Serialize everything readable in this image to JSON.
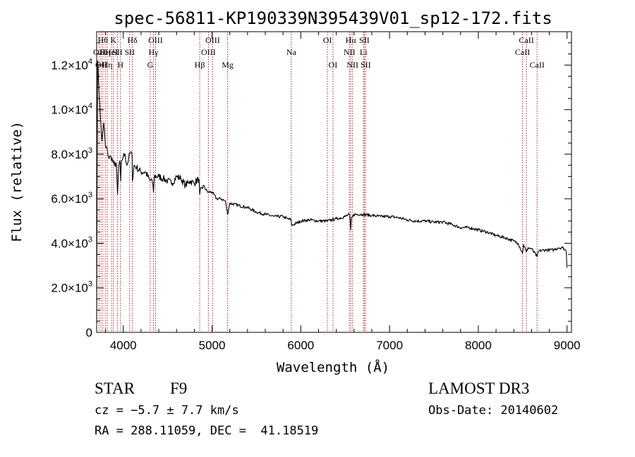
{
  "chart_data": {
    "type": "line",
    "title": "spec-56811-KP190339N395439V01_sp12-172.fits",
    "xlabel": "Wavelength (Å)",
    "ylabel": "Flux (relative)",
    "xlim": [
      3700,
      9050
    ],
    "ylim": [
      0,
      13500
    ],
    "x_ticks": [
      4000,
      5000,
      6000,
      7000,
      8000,
      9000
    ],
    "x_tick_labels": [
      "4000",
      "5000",
      "6000",
      "7000",
      "8000",
      "9000"
    ],
    "y_ticks": [
      0,
      2000,
      4000,
      6000,
      8000,
      10000,
      12000
    ],
    "y_tick_labels": [
      {
        "base": "0",
        "exp": ""
      },
      {
        "base": "2.0×10",
        "exp": "3"
      },
      {
        "base": "4.0×10",
        "exp": "3"
      },
      {
        "base": "6.0×10",
        "exp": "3"
      },
      {
        "base": "8.0×10",
        "exp": "3"
      },
      {
        "base": "1.0×10",
        "exp": "4"
      },
      {
        "base": "1.2×10",
        "exp": "4"
      }
    ],
    "series": [
      {
        "name": "spectrum",
        "x": [
          3700,
          3710,
          3725,
          3740,
          3760,
          3780,
          3800,
          3820,
          3840,
          3860,
          3880,
          3900,
          3920,
          3935,
          3950,
          3965,
          3970,
          3980,
          4000,
          4020,
          4040,
          4060,
          4080,
          4100,
          4102,
          4120,
          4150,
          4200,
          4250,
          4300,
          4320,
          4340,
          4350,
          4400,
          4450,
          4500,
          4550,
          4600,
          4650,
          4700,
          4750,
          4800,
          4850,
          4861,
          4900,
          4950,
          5000,
          5050,
          5100,
          5150,
          5175,
          5200,
          5300,
          5400,
          5500,
          5600,
          5700,
          5800,
          5850,
          5890,
          5900,
          6000,
          6100,
          6200,
          6300,
          6400,
          6500,
          6550,
          6563,
          6570,
          6600,
          6700,
          6800,
          6900,
          7000,
          7100,
          7200,
          7300,
          7400,
          7500,
          7600,
          7700,
          7800,
          7900,
          8000,
          8100,
          8200,
          8300,
          8400,
          8450,
          8498,
          8510,
          8542,
          8560,
          8600,
          8662,
          8680,
          8750,
          8800,
          8850,
          8900,
          8950,
          8980,
          8990,
          9000
        ],
        "y": [
          400,
          12200,
          11000,
          9800,
          8600,
          9400,
          8300,
          8200,
          7800,
          7900,
          7700,
          7500,
          7600,
          6200,
          7500,
          7600,
          6800,
          7700,
          7900,
          8000,
          7500,
          7800,
          8100,
          7900,
          6800,
          7500,
          7400,
          7200,
          7200,
          6800,
          6900,
          6300,
          7000,
          7000,
          6900,
          6800,
          6700,
          7000,
          6900,
          6600,
          6800,
          6700,
          6900,
          6200,
          6600,
          6300,
          6300,
          6000,
          6000,
          5900,
          5300,
          5800,
          5700,
          5600,
          5400,
          5300,
          5200,
          5200,
          5100,
          5050,
          4800,
          5000,
          5050,
          5000,
          5000,
          5100,
          5200,
          5300,
          4600,
          5100,
          5300,
          5300,
          5250,
          5200,
          5200,
          5150,
          5050,
          5000,
          5000,
          4950,
          4950,
          4850,
          4700,
          4700,
          4600,
          4500,
          4350,
          4250,
          4100,
          4000,
          3550,
          3950,
          3600,
          3800,
          3750,
          3400,
          3650,
          3700,
          3700,
          3700,
          3800,
          3800,
          3700,
          3650,
          2900
        ]
      }
    ],
    "lines": [
      {
        "wl": 3727,
        "row": 2,
        "label": "OII"
      },
      {
        "wl": 3750,
        "row": 3,
        "label": "OII"
      },
      {
        "wl": 3770,
        "row": 1,
        "label": "Hθ"
      },
      {
        "wl": 3797,
        "row": 2,
        "label": "Hη"
      },
      {
        "wl": 3820,
        "row": 3,
        "label": "Hη"
      },
      {
        "wl": 3868,
        "row": 2,
        "label": "HeI"
      },
      {
        "wl": 3889,
        "row": 1,
        "label": "K"
      },
      {
        "wl": 3934,
        "row": 2,
        "label": "SII"
      },
      {
        "wl": 3968,
        "row": 3,
        "label": "H"
      },
      {
        "wl": 4072,
        "row": 2,
        "label": "SII"
      },
      {
        "wl": 4102,
        "row": 1,
        "label": "Hδ"
      },
      {
        "wl": 4304,
        "row": 3,
        "label": "G"
      },
      {
        "wl": 4340,
        "row": 2,
        "label": "Hγ"
      },
      {
        "wl": 4363,
        "row": 1,
        "label": "OIII"
      },
      {
        "wl": 4861,
        "row": 3,
        "label": "Hβ"
      },
      {
        "wl": 4959,
        "row": 2,
        "label": "OIII"
      },
      {
        "wl": 5007,
        "row": 1,
        "label": "OIII"
      },
      {
        "wl": 5175,
        "row": 3,
        "label": "Mg"
      },
      {
        "wl": 5893,
        "row": 2,
        "label": "Na"
      },
      {
        "wl": 6300,
        "row": 1,
        "label": "OI"
      },
      {
        "wl": 6363,
        "row": 3,
        "label": "OI"
      },
      {
        "wl": 6548,
        "row": 2,
        "label": "NII"
      },
      {
        "wl": 6563,
        "row": 1,
        "label": "Hα"
      },
      {
        "wl": 6583,
        "row": 3,
        "label": "NII"
      },
      {
        "wl": 6707,
        "row": 2,
        "label": "Li"
      },
      {
        "wl": 6716,
        "row": 1,
        "label": "SII"
      },
      {
        "wl": 6731,
        "row": 3,
        "label": "SII"
      },
      {
        "wl": 8498,
        "row": 2,
        "label": "CaII"
      },
      {
        "wl": 8542,
        "row": 1,
        "label": "CaII"
      },
      {
        "wl": 8662,
        "row": 3,
        "label": "CaII"
      }
    ]
  },
  "info": {
    "object_class": "STAR",
    "subclass": "F9",
    "cz": "cz = −5.7 ± 7.7 km/s",
    "coords": "RA = 288.11059, DEC =  41.18519",
    "survey": "LAMOST DR3",
    "obs_date": "Obs-Date: 20140602"
  }
}
